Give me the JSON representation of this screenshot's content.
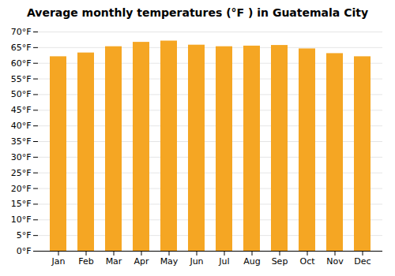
{
  "chart_data": {
    "type": "bar",
    "title": "Average monthly temperatures (°F ) in Guatemala City",
    "categories": [
      "Jan",
      "Feb",
      "Mar",
      "Apr",
      "May",
      "Jun",
      "Jul",
      "Aug",
      "Sep",
      "Oct",
      "Nov",
      "Dec"
    ],
    "values": [
      62.1,
      63.3,
      65.3,
      66.7,
      67.1,
      65.8,
      65.3,
      65.5,
      65.7,
      64.6,
      63.1,
      62.1
    ],
    "color": "#F5A623",
    "ylim": [
      0,
      70
    ],
    "yticks": [
      {
        "value": 0,
        "label": "0°F"
      },
      {
        "value": 5,
        "label": "5°F"
      },
      {
        "value": 10,
        "label": "10°F"
      },
      {
        "value": 15,
        "label": "15°F"
      },
      {
        "value": 20,
        "label": "20°F"
      },
      {
        "value": 25,
        "label": "25°F"
      },
      {
        "value": 30,
        "label": "30°F"
      },
      {
        "value": 35,
        "label": "35°F"
      },
      {
        "value": 40,
        "label": "40°F"
      },
      {
        "value": 45,
        "label": "45°F"
      },
      {
        "value": 50,
        "label": "50°F"
      },
      {
        "value": 55,
        "label": "55°F"
      },
      {
        "value": 60,
        "label": "60°F"
      },
      {
        "value": 65,
        "label": "65°F"
      },
      {
        "value": 70,
        "label": "70°F"
      }
    ],
    "grid": true
  }
}
